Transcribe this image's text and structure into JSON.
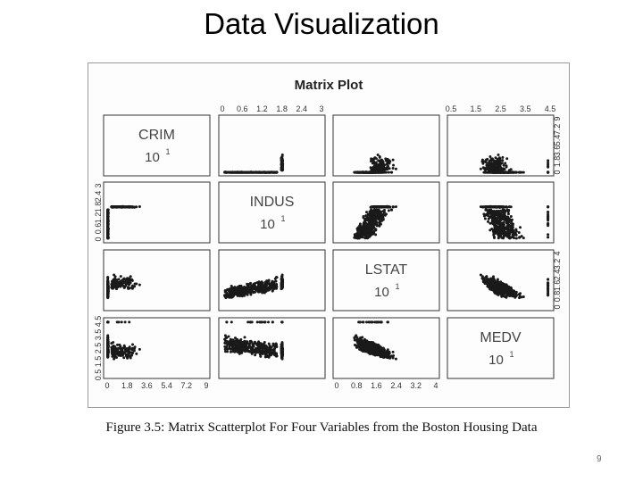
{
  "slide": {
    "title": "Data Visualization",
    "caption": "Figure 3.5: Matrix Scatterplot For Four Variables from the Boston Housing Data",
    "page_number": "9"
  },
  "chart_data": {
    "type": "scatter",
    "title": "Matrix Plot",
    "variables": [
      {
        "name": "CRIM",
        "scale_label": "10",
        "scale_exp": "1"
      },
      {
        "name": "INDUS",
        "scale_label": "10",
        "scale_exp": "1"
      },
      {
        "name": "LSTAT",
        "scale_label": "10",
        "scale_exp": "1"
      },
      {
        "name": "MEDV",
        "scale_label": "10",
        "scale_exp": "1"
      }
    ],
    "axis_ticks": {
      "top": [
        {
          "column": 1,
          "labels": [
            "0",
            "0.6",
            "1.2",
            "1.8",
            "2.4",
            "3"
          ]
        },
        {
          "column": 3,
          "labels": [
            "0.5",
            "1.5",
            "2.5",
            "3.5",
            "4.5"
          ]
        }
      ],
      "bottom": [
        {
          "column": 0,
          "labels": [
            "0",
            "1.8",
            "3.6",
            "5.4",
            "7.2",
            "9"
          ]
        },
        {
          "column": 2,
          "labels": [
            "0",
            "0.8",
            "1.6",
            "2.4",
            "3.2",
            "4"
          ]
        }
      ],
      "left": [
        {
          "row": 1,
          "labels": [
            "0",
            "0.6",
            "1.2",
            "1.8",
            "2.4",
            "3"
          ]
        },
        {
          "row": 3,
          "labels": [
            "0.5",
            "1.5",
            "2.5",
            "3.5",
            "4.5"
          ]
        }
      ],
      "right": [
        {
          "row": 0,
          "labels": [
            "0",
            "1.8",
            "3.6",
            "5.4",
            "7.2",
            "9"
          ]
        },
        {
          "row": 2,
          "labels": [
            "0",
            "0.8",
            "1.6",
            "2.4",
            "3.2",
            "4"
          ]
        }
      ]
    },
    "grid": false,
    "legend": "none",
    "marker_color": "#1a1a1a",
    "panel_border_color": "#333333",
    "approx_points": 506
  }
}
